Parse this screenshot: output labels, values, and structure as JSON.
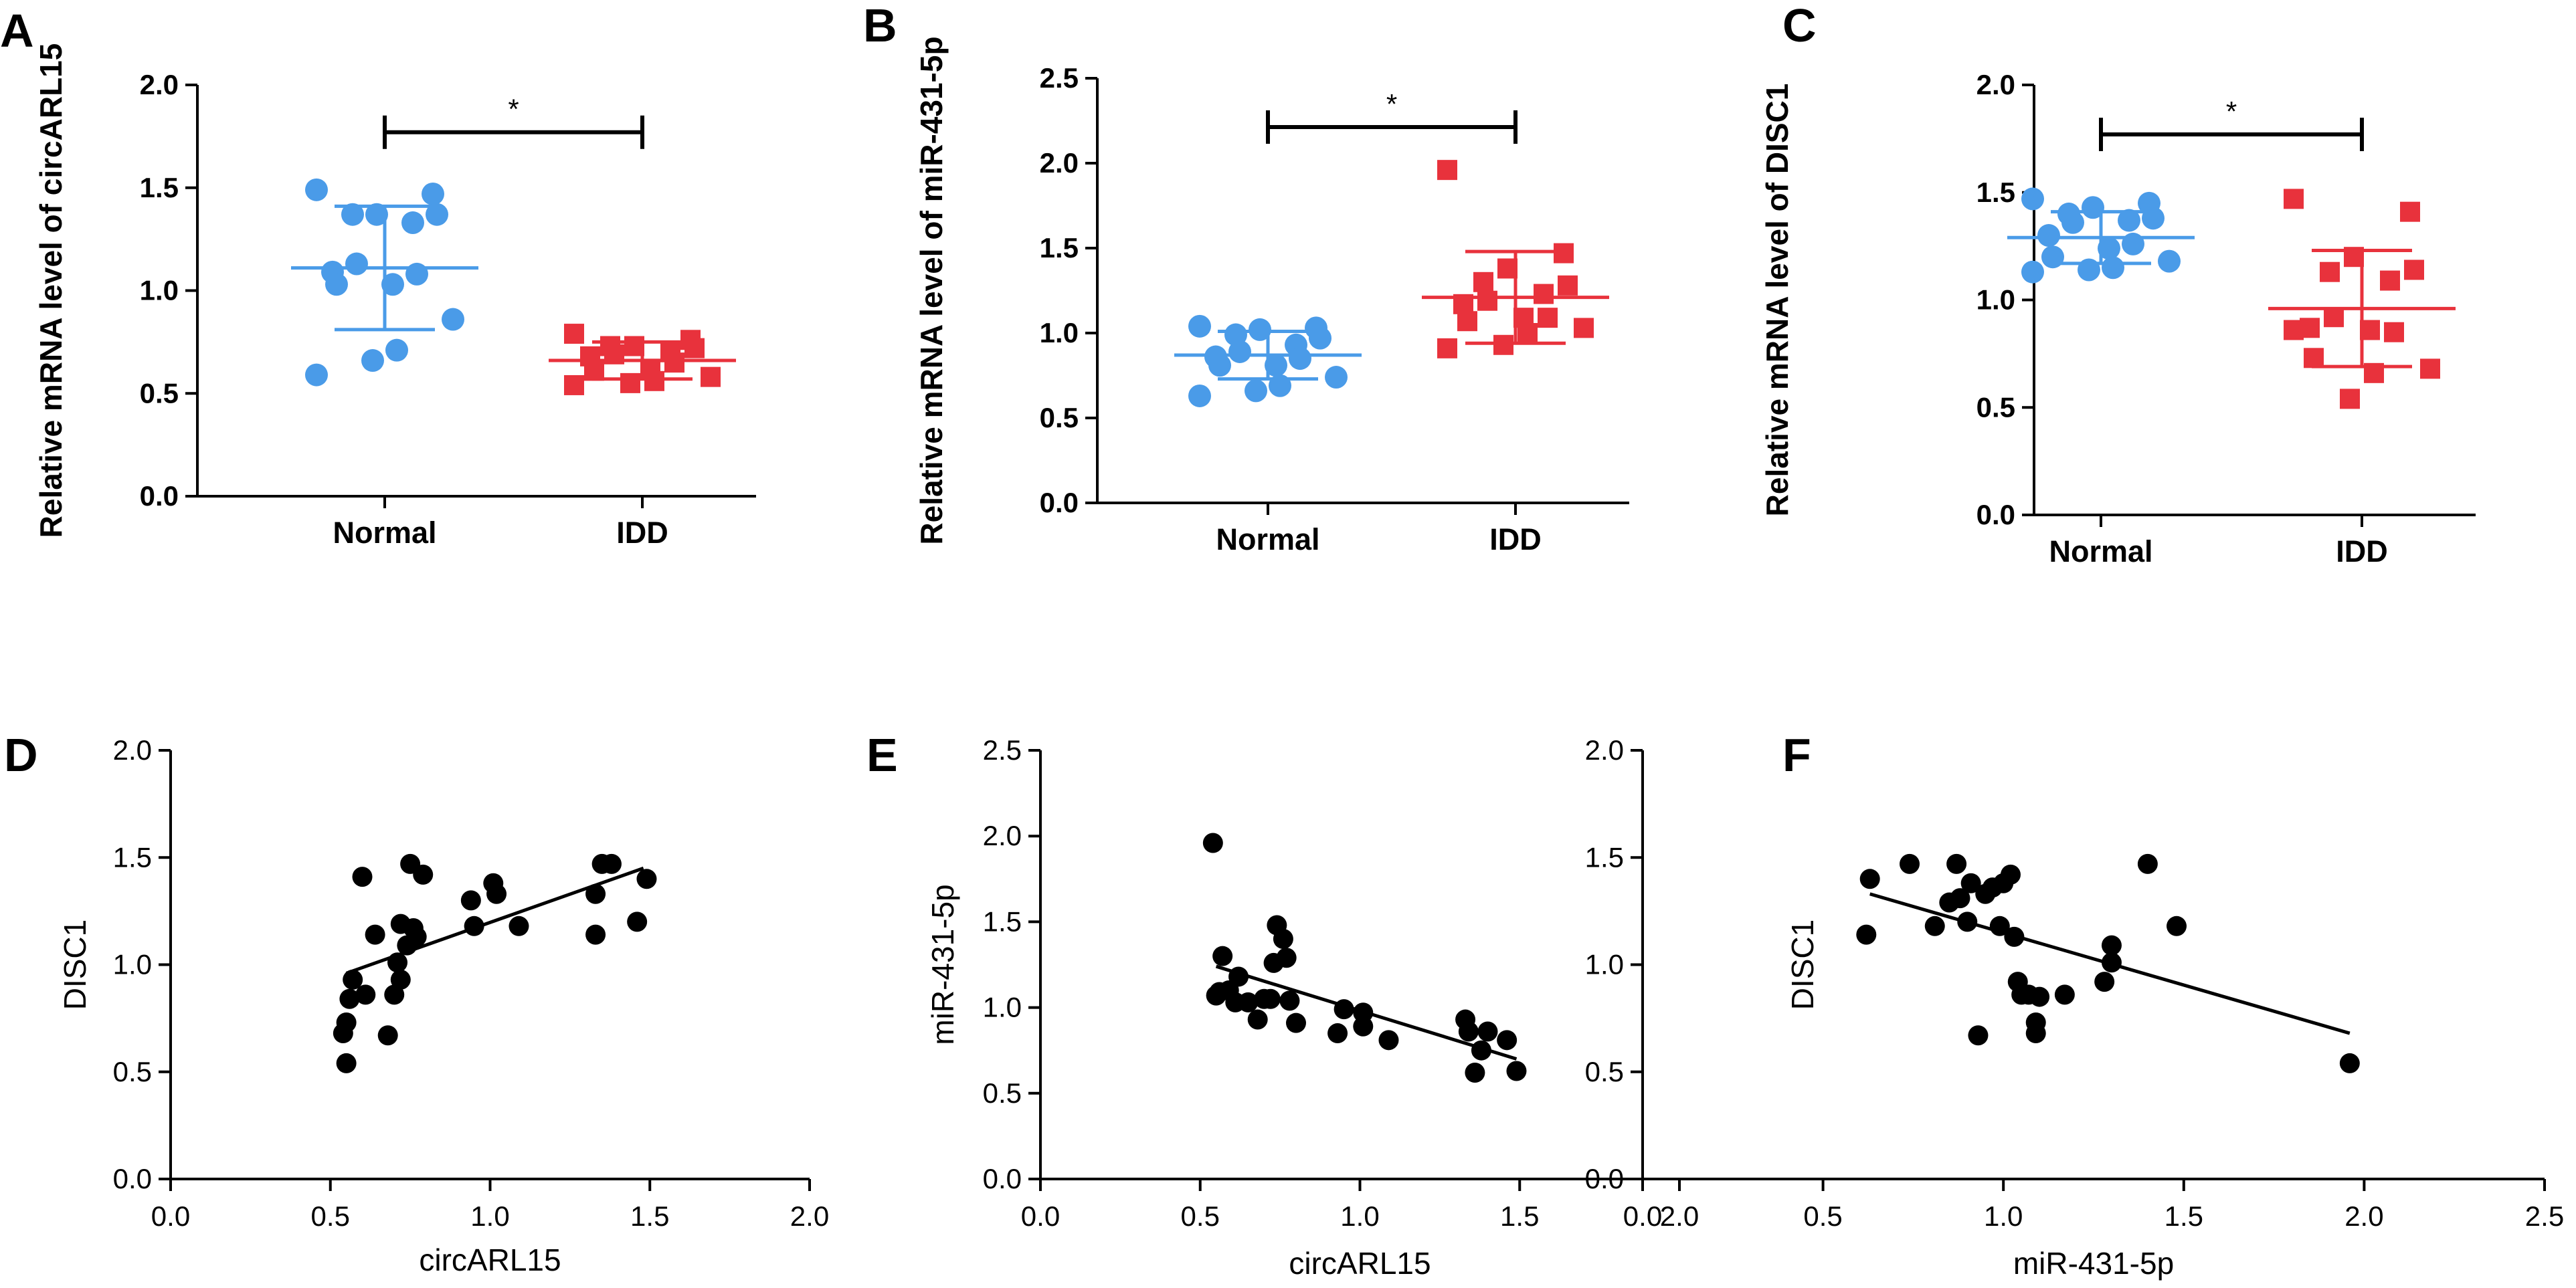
{
  "colors": {
    "normal": "#4a9be8",
    "idd": "#e8323c",
    "point": "#000000",
    "axis": "#000000"
  },
  "chart_data": [
    {
      "panel": "A",
      "type": "scatter",
      "ylabel": "Relative mRNA level of circARL15",
      "ylim": [
        0,
        2.0
      ],
      "yticks": [
        "0.0",
        "0.5",
        "1.0",
        "1.5",
        "2.0"
      ],
      "categories": [
        "Normal",
        "IDD"
      ],
      "significance": "*",
      "series": [
        {
          "name": "Normal",
          "marker": "circle",
          "mean": 1.11,
          "sd": 0.3,
          "values": [
            1.49,
            1.47,
            1.37,
            1.37,
            1.37,
            1.33,
            1.13,
            1.09,
            1.08,
            1.03,
            1.03,
            0.86,
            0.71,
            0.66,
            0.59
          ]
        },
        {
          "name": "IDD",
          "marker": "square",
          "mean": 0.66,
          "sd": 0.09,
          "values": [
            0.79,
            0.76,
            0.73,
            0.73,
            0.72,
            0.7,
            0.69,
            0.68,
            0.65,
            0.62,
            0.61,
            0.58,
            0.56,
            0.55,
            0.54
          ]
        }
      ]
    },
    {
      "panel": "B",
      "type": "scatter",
      "ylabel": "Relative mRNA level of miR-431-5p",
      "ylim": [
        0,
        2.5
      ],
      "yticks": [
        "0.0",
        "0.5",
        "1.0",
        "1.5",
        "2.0",
        "2.5"
      ],
      "categories": [
        "Normal",
        "IDD"
      ],
      "significance": "*",
      "series": [
        {
          "name": "Normal",
          "marker": "circle",
          "mean": 0.87,
          "sd": 0.14,
          "values": [
            1.04,
            1.03,
            1.02,
            0.99,
            0.97,
            0.93,
            0.89,
            0.86,
            0.85,
            0.81,
            0.81,
            0.74,
            0.69,
            0.66,
            0.63
          ]
        },
        {
          "name": "IDD",
          "marker": "square",
          "mean": 1.21,
          "sd": 0.27,
          "values": [
            1.96,
            1.47,
            1.38,
            1.3,
            1.28,
            1.23,
            1.19,
            1.17,
            1.09,
            1.09,
            1.07,
            1.03,
            1.0,
            0.93,
            0.91
          ]
        }
      ]
    },
    {
      "panel": "C",
      "type": "scatter",
      "ylabel": "Relative mRNA level of DISC1",
      "ylim": [
        0,
        2.0
      ],
      "yticks": [
        "0.0",
        "0.5",
        "1.0",
        "1.5",
        "2.0"
      ],
      "categories": [
        "Normal",
        "IDD"
      ],
      "significance": "*",
      "series": [
        {
          "name": "Normal",
          "marker": "circle",
          "mean": 1.29,
          "sd": 0.12,
          "values": [
            1.47,
            1.45,
            1.43,
            1.4,
            1.38,
            1.37,
            1.36,
            1.3,
            1.26,
            1.24,
            1.2,
            1.18,
            1.15,
            1.14,
            1.13
          ]
        },
        {
          "name": "IDD",
          "marker": "square",
          "mean": 0.96,
          "sd": 0.27,
          "values": [
            1.47,
            1.41,
            1.2,
            1.13,
            1.14,
            1.09,
            0.92,
            0.87,
            0.85,
            0.86,
            0.73,
            0.68,
            0.66,
            0.54,
            0.86
          ]
        }
      ]
    },
    {
      "panel": "D",
      "type": "scatter",
      "xlabel": "circARL15",
      "ylabel": "DISC1",
      "xlim": [
        0,
        2.0
      ],
      "ylim": [
        0,
        2.0
      ],
      "xticks": [
        "0.0",
        "0.5",
        "1.0",
        "1.5",
        "2.0"
      ],
      "yticks": [
        "0.0",
        "0.5",
        "1.0",
        "1.5",
        "2.0"
      ],
      "fit_line": [
        [
          0.55,
          0.96
        ],
        [
          1.48,
          1.45
        ]
      ],
      "points": [
        [
          0.54,
          0.68
        ],
        [
          0.55,
          0.73
        ],
        [
          0.55,
          0.54
        ],
        [
          0.56,
          0.84
        ],
        [
          0.57,
          0.93
        ],
        [
          0.61,
          0.86
        ],
        [
          0.6,
          1.41
        ],
        [
          0.64,
          1.14
        ],
        [
          0.68,
          0.67
        ],
        [
          0.7,
          0.86
        ],
        [
          0.72,
          0.93
        ],
        [
          0.71,
          1.01
        ],
        [
          0.72,
          1.19
        ],
        [
          0.74,
          1.09
        ],
        [
          0.75,
          1.47
        ],
        [
          0.76,
          1.17
        ],
        [
          0.77,
          1.13
        ],
        [
          0.79,
          1.42
        ],
        [
          0.94,
          1.3
        ],
        [
          0.95,
          1.18
        ],
        [
          1.01,
          1.38
        ],
        [
          1.02,
          1.33
        ],
        [
          1.09,
          1.18
        ],
        [
          1.33,
          1.14
        ],
        [
          1.33,
          1.33
        ],
        [
          1.35,
          1.47
        ],
        [
          1.38,
          1.47
        ],
        [
          1.46,
          1.2
        ],
        [
          1.49,
          1.4
        ]
      ]
    },
    {
      "panel": "E",
      "type": "scatter",
      "xlabel": "circARL15",
      "ylabel": "miR-431-5p",
      "xlim": [
        0,
        2.0
      ],
      "ylim": [
        0,
        2.5
      ],
      "xticks": [
        "0.0",
        "0.5",
        "1.0",
        "1.5",
        "2.0"
      ],
      "yticks": [
        "0.0",
        "0.5",
        "1.0",
        "1.5",
        "2.0",
        "2.5"
      ],
      "fit_line": [
        [
          0.55,
          1.24
        ],
        [
          1.49,
          0.7
        ]
      ],
      "points": [
        [
          0.54,
          1.96
        ],
        [
          0.55,
          1.07
        ],
        [
          0.56,
          1.09
        ],
        [
          0.57,
          1.3
        ],
        [
          0.59,
          1.1
        ],
        [
          0.61,
          1.03
        ],
        [
          0.62,
          1.18
        ],
        [
          0.65,
          1.03
        ],
        [
          0.68,
          0.93
        ],
        [
          0.7,
          1.05
        ],
        [
          0.72,
          1.05
        ],
        [
          0.73,
          1.26
        ],
        [
          0.74,
          1.48
        ],
        [
          0.76,
          1.4
        ],
        [
          0.77,
          1.29
        ],
        [
          0.78,
          1.04
        ],
        [
          0.8,
          0.91
        ],
        [
          0.93,
          0.85
        ],
        [
          0.95,
          0.99
        ],
        [
          1.01,
          0.89
        ],
        [
          1.01,
          0.97
        ],
        [
          1.09,
          0.81
        ],
        [
          1.33,
          0.93
        ],
        [
          1.34,
          0.86
        ],
        [
          1.36,
          0.62
        ],
        [
          1.38,
          0.75
        ],
        [
          1.4,
          0.86
        ],
        [
          1.46,
          0.81
        ],
        [
          1.49,
          0.63
        ]
      ]
    },
    {
      "panel": "F",
      "type": "scatter",
      "xlabel": "miR-431-5p",
      "ylabel": "DISC1",
      "xlim": [
        0,
        2.5
      ],
      "ylim": [
        0,
        2.0
      ],
      "xticks": [
        "0.0",
        "0.5",
        "1.0",
        "1.5",
        "2.0",
        "2.5"
      ],
      "yticks": [
        "0.0",
        "0.5",
        "1.0",
        "1.5",
        "2.0"
      ],
      "fit_line": [
        [
          0.63,
          1.33
        ],
        [
          1.96,
          0.68
        ]
      ],
      "points": [
        [
          0.62,
          1.14
        ],
        [
          0.63,
          1.4
        ],
        [
          0.74,
          1.47
        ],
        [
          0.81,
          1.18
        ],
        [
          0.85,
          1.29
        ],
        [
          0.87,
          1.47
        ],
        [
          0.88,
          1.31
        ],
        [
          0.9,
          1.2
        ],
        [
          0.91,
          1.38
        ],
        [
          0.93,
          0.67
        ],
        [
          0.95,
          1.33
        ],
        [
          0.97,
          1.36
        ],
        [
          0.99,
          1.18
        ],
        [
          1.0,
          1.38
        ],
        [
          1.02,
          1.42
        ],
        [
          1.03,
          1.13
        ],
        [
          1.04,
          0.92
        ],
        [
          1.05,
          0.86
        ],
        [
          1.07,
          0.86
        ],
        [
          1.09,
          0.68
        ],
        [
          1.09,
          0.73
        ],
        [
          1.1,
          0.85
        ],
        [
          1.17,
          0.86
        ],
        [
          1.28,
          0.92
        ],
        [
          1.3,
          1.09
        ],
        [
          1.3,
          1.01
        ],
        [
          1.4,
          1.47
        ],
        [
          1.48,
          1.18
        ],
        [
          1.96,
          0.54
        ]
      ]
    }
  ]
}
